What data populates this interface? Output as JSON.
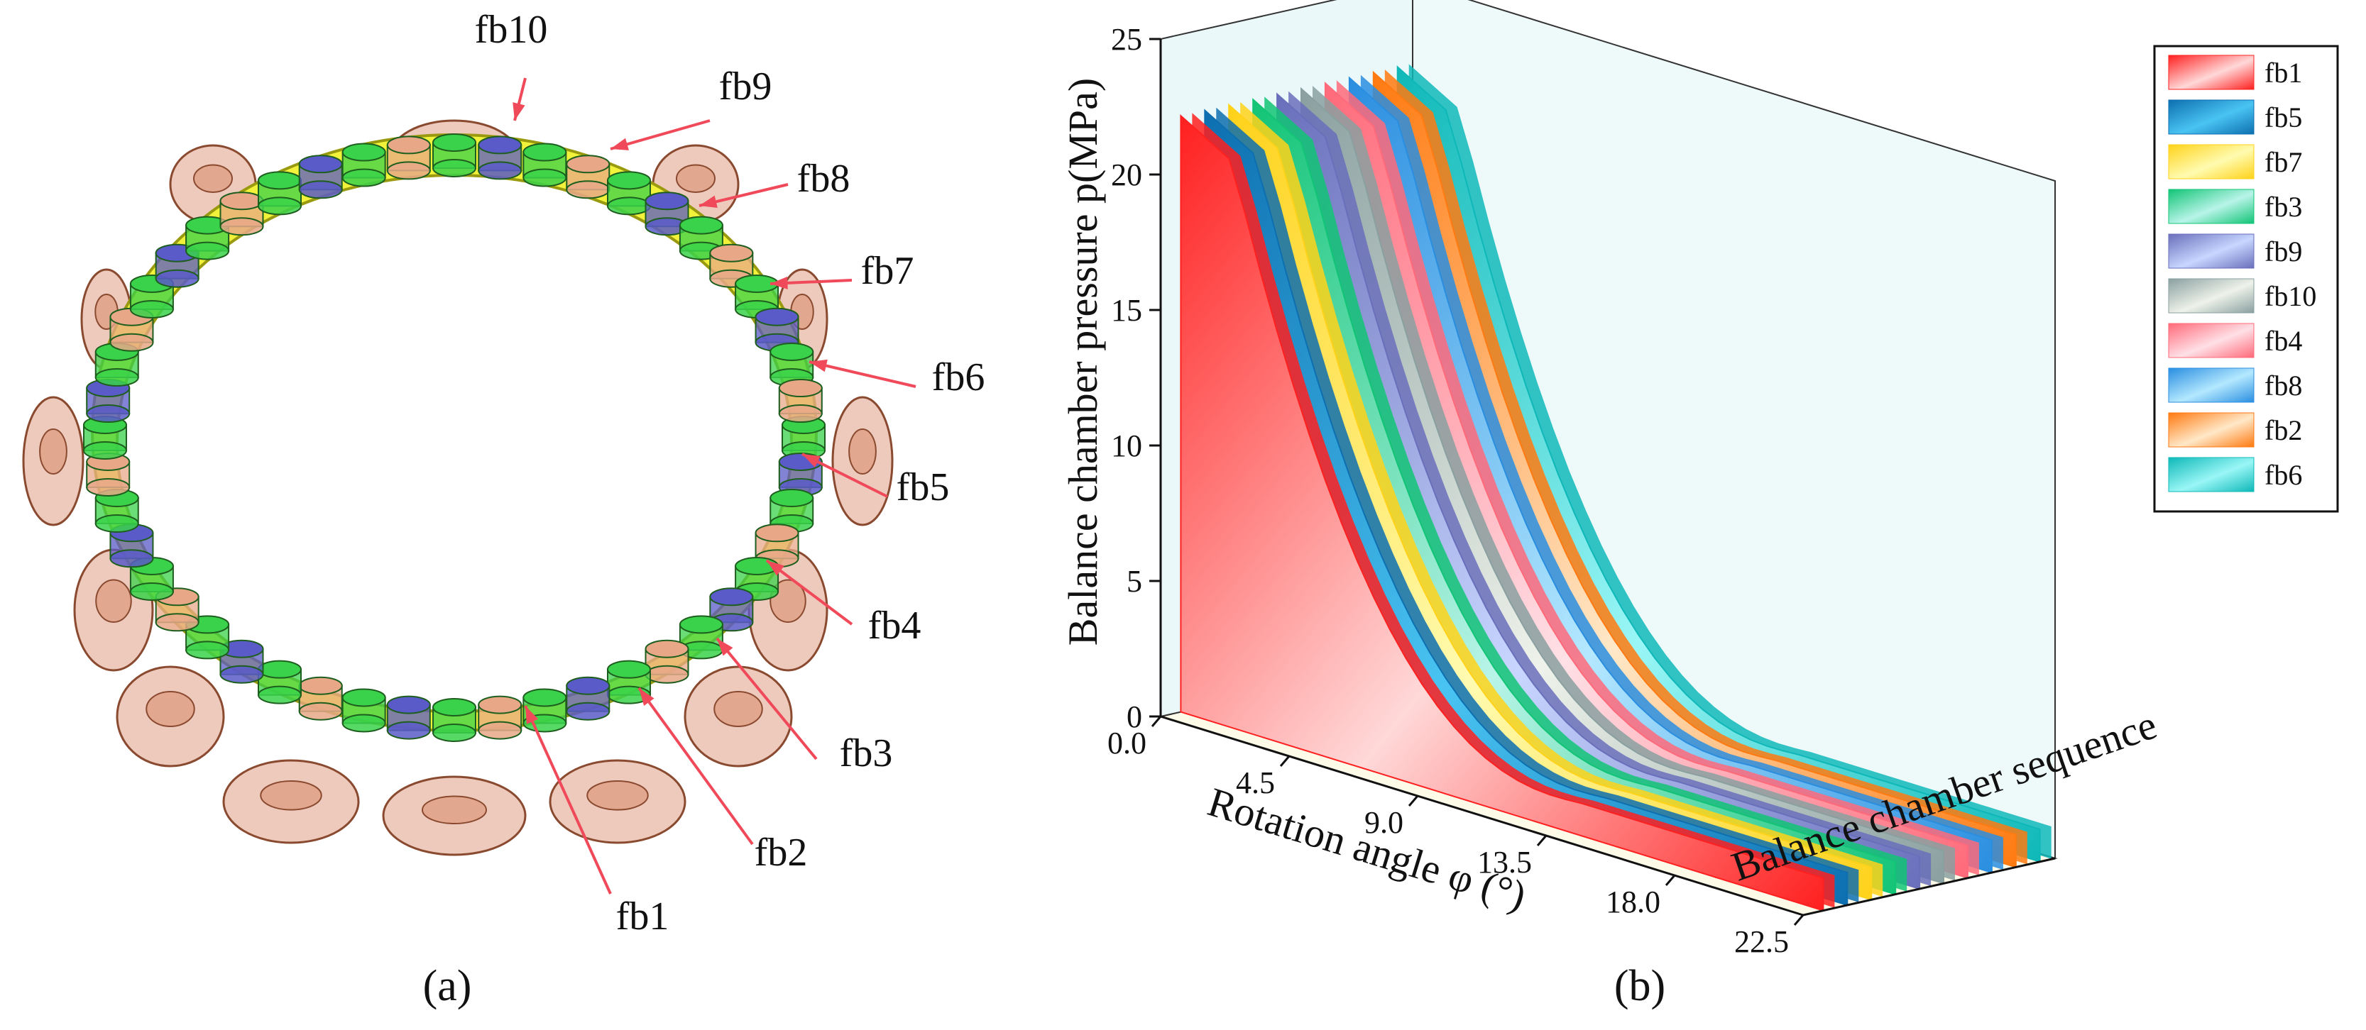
{
  "figure": {
    "panel_a_label": "(a)",
    "panel_b_label": "(b)"
  },
  "ring": {
    "callouts": [
      "fb10",
      "fb9",
      "fb8",
      "fb7",
      "fb6",
      "fb5",
      "fb4",
      "fb3",
      "fb2",
      "fb1"
    ],
    "colors": {
      "ring": "#f2f23a",
      "ring_edge": "#9a9a10",
      "bearing_green": "#39d24a",
      "bearing_blue": "#5a5ac8",
      "bearing_peach": "#e8a888",
      "port": "#d98a6a",
      "arrow": "#f04a5a"
    }
  },
  "chart_data": {
    "type": "3d-ribbon",
    "title": "",
    "ylabel": "Balance chamber pressure p(MPa)",
    "xlabel": "Rotation angle φ (°)",
    "zlabel": "Balance chamber sequence",
    "ylim": [
      0,
      25
    ],
    "yticks": [
      "0",
      "5",
      "10",
      "15",
      "20",
      "25"
    ],
    "xticks": [
      "0.0",
      "4.5",
      "9.0",
      "13.5",
      "18.0",
      "22.5"
    ],
    "legend_position": "top-right",
    "series": [
      {
        "name": "fb1",
        "color_a": "#ff2020",
        "color_b": "#ffd8d8",
        "peak": 22
      },
      {
        "name": "fb5",
        "color_a": "#0d6fb0",
        "color_b": "#49c4f2",
        "peak": 22
      },
      {
        "name": "fb7",
        "color_a": "#ffd21a",
        "color_b": "#fffbb0",
        "peak": 22
      },
      {
        "name": "fb3",
        "color_a": "#12c476",
        "color_b": "#b8f4e8",
        "peak": 22
      },
      {
        "name": "fb9",
        "color_a": "#6a6fbb",
        "color_b": "#c8d6ff",
        "peak": 22
      },
      {
        "name": "fb10",
        "color_a": "#8aa0a0",
        "color_b": "#eef2ea",
        "peak": 22
      },
      {
        "name": "fb4",
        "color_a": "#ff6a7a",
        "color_b": "#ffe0e6",
        "peak": 22
      },
      {
        "name": "fb8",
        "color_a": "#2a8ee0",
        "color_b": "#b4e8ff",
        "peak": 22
      },
      {
        "name": "fb2",
        "color_a": "#ff7a10",
        "color_b": "#ffe8c8",
        "peak": 22
      },
      {
        "name": "fb6",
        "color_a": "#0fb8b8",
        "color_b": "#9af6f6",
        "peak": 22
      }
    ]
  }
}
